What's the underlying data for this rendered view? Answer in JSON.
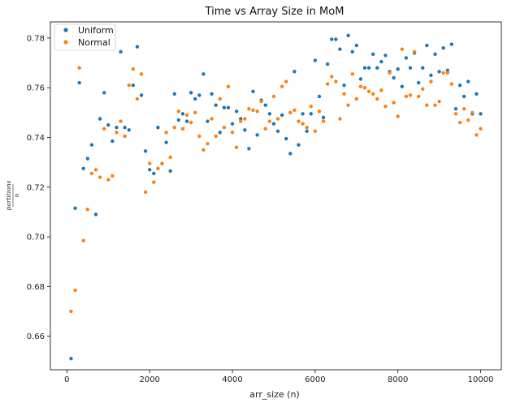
{
  "chart_data": {
    "type": "scatter",
    "title": "Time vs Array Size in MoM",
    "xlabel": "arr_size (n)",
    "ylabel": "partitions / n",
    "ylabel_numerator": "partitions",
    "ylabel_denominator": "n",
    "xlim": [
      -400,
      10500
    ],
    "ylim": [
      0.6465,
      0.7865
    ],
    "xticks": [
      0,
      2000,
      4000,
      6000,
      8000,
      10000
    ],
    "yticks": [
      0.66,
      0.68,
      0.7,
      0.72,
      0.74,
      0.76,
      0.78
    ],
    "xtick_labels": [
      "0",
      "2000",
      "4000",
      "6000",
      "8000",
      "10000"
    ],
    "ytick_labels": [
      "0.66",
      "0.68",
      "0.70",
      "0.72",
      "0.74",
      "0.76",
      "0.78"
    ],
    "legend_position": "upper-left",
    "grid": false,
    "series": [
      {
        "name": "Uniform",
        "color": "#1f77b4",
        "points": [
          [
            100,
            0.651
          ],
          [
            200,
            0.7115
          ],
          [
            300,
            0.762
          ],
          [
            400,
            0.7275
          ],
          [
            500,
            0.7315
          ],
          [
            600,
            0.737
          ],
          [
            700,
            0.709
          ],
          [
            800,
            0.7475
          ],
          [
            900,
            0.758
          ],
          [
            1000,
            0.745
          ],
          [
            1100,
            0.7385
          ],
          [
            1200,
            0.744
          ],
          [
            1300,
            0.7745
          ],
          [
            1400,
            0.744
          ],
          [
            1500,
            0.743
          ],
          [
            1600,
            0.761
          ],
          [
            1700,
            0.7765
          ],
          [
            1800,
            0.757
          ],
          [
            1900,
            0.7345
          ],
          [
            2000,
            0.727
          ],
          [
            2100,
            0.7255
          ],
          [
            2200,
            0.744
          ],
          [
            2300,
            0.7295
          ],
          [
            2400,
            0.738
          ],
          [
            2500,
            0.7265
          ],
          [
            2600,
            0.7575
          ],
          [
            2700,
            0.747
          ],
          [
            2800,
            0.7495
          ],
          [
            2900,
            0.7465
          ],
          [
            3000,
            0.758
          ],
          [
            3100,
            0.7555
          ],
          [
            3200,
            0.757
          ],
          [
            3300,
            0.7655
          ],
          [
            3400,
            0.7465
          ],
          [
            3500,
            0.7575
          ],
          [
            3600,
            0.753
          ],
          [
            3700,
            0.742
          ],
          [
            3800,
            0.752
          ],
          [
            3900,
            0.752
          ],
          [
            4000,
            0.7455
          ],
          [
            4100,
            0.7505
          ],
          [
            4200,
            0.7475
          ],
          [
            4300,
            0.743
          ],
          [
            4400,
            0.7355
          ],
          [
            4500,
            0.7585
          ],
          [
            4600,
            0.741
          ],
          [
            4700,
            0.755
          ],
          [
            4800,
            0.753
          ],
          [
            4900,
            0.7495
          ],
          [
            5000,
            0.7455
          ],
          [
            5100,
            0.7425
          ],
          [
            5200,
            0.749
          ],
          [
            5300,
            0.7395
          ],
          [
            5400,
            0.7335
          ],
          [
            5500,
            0.7665
          ],
          [
            5600,
            0.737
          ],
          [
            5700,
            0.7495
          ],
          [
            5800,
            0.7425
          ],
          [
            5900,
            0.7495
          ],
          [
            6000,
            0.771
          ],
          [
            6100,
            0.7565
          ],
          [
            6200,
            0.748
          ],
          [
            6300,
            0.7695
          ],
          [
            6400,
            0.7795
          ],
          [
            6500,
            0.7795
          ],
          [
            6600,
            0.7755
          ],
          [
            6700,
            0.761
          ],
          [
            6800,
            0.781
          ],
          [
            6900,
            0.7745
          ],
          [
            7000,
            0.777
          ],
          [
            7100,
            0.7635
          ],
          [
            7200,
            0.768
          ],
          [
            7300,
            0.768
          ],
          [
            7400,
            0.7735
          ],
          [
            7500,
            0.768
          ],
          [
            7600,
            0.7705
          ],
          [
            7700,
            0.773
          ],
          [
            7800,
            0.7665
          ],
          [
            7900,
            0.764
          ],
          [
            8000,
            0.7675
          ],
          [
            8100,
            0.7605
          ],
          [
            8200,
            0.772
          ],
          [
            8300,
            0.768
          ],
          [
            8400,
            0.774
          ],
          [
            8500,
            0.762
          ],
          [
            8600,
            0.768
          ],
          [
            8700,
            0.777
          ],
          [
            8800,
            0.765
          ],
          [
            8900,
            0.7735
          ],
          [
            9000,
            0.7665
          ],
          [
            9100,
            0.776
          ],
          [
            9200,
            0.767
          ],
          [
            9300,
            0.7775
          ],
          [
            9400,
            0.7515
          ],
          [
            9500,
            0.761
          ],
          [
            9600,
            0.7565
          ],
          [
            9700,
            0.7625
          ],
          [
            9800,
            0.7495
          ],
          [
            9900,
            0.7575
          ],
          [
            10000,
            0.7495
          ]
        ]
      },
      {
        "name": "Normal",
        "color": "#ff7f0e",
        "points": [
          [
            100,
            0.67
          ],
          [
            200,
            0.6785
          ],
          [
            300,
            0.768
          ],
          [
            400,
            0.6985
          ],
          [
            500,
            0.711
          ],
          [
            600,
            0.7255
          ],
          [
            700,
            0.727
          ],
          [
            800,
            0.724
          ],
          [
            900,
            0.7435
          ],
          [
            1000,
            0.723
          ],
          [
            1100,
            0.7245
          ],
          [
            1200,
            0.742
          ],
          [
            1300,
            0.7465
          ],
          [
            1400,
            0.7405
          ],
          [
            1500,
            0.761
          ],
          [
            1600,
            0.7675
          ],
          [
            1700,
            0.7555
          ],
          [
            1800,
            0.7655
          ],
          [
            1900,
            0.718
          ],
          [
            2000,
            0.7295
          ],
          [
            2100,
            0.722
          ],
          [
            2200,
            0.7275
          ],
          [
            2300,
            0.7295
          ],
          [
            2400,
            0.742
          ],
          [
            2500,
            0.732
          ],
          [
            2600,
            0.744
          ],
          [
            2700,
            0.7505
          ],
          [
            2800,
            0.7435
          ],
          [
            2900,
            0.749
          ],
          [
            3000,
            0.746
          ],
          [
            3100,
            0.75
          ],
          [
            3200,
            0.7405
          ],
          [
            3300,
            0.735
          ],
          [
            3400,
            0.7375
          ],
          [
            3500,
            0.7475
          ],
          [
            3600,
            0.7405
          ],
          [
            3700,
            0.7555
          ],
          [
            3800,
            0.744
          ],
          [
            3900,
            0.7605
          ],
          [
            4000,
            0.742
          ],
          [
            4100,
            0.736
          ],
          [
            4200,
            0.7465
          ],
          [
            4300,
            0.7475
          ],
          [
            4400,
            0.7515
          ],
          [
            4500,
            0.751
          ],
          [
            4600,
            0.7505
          ],
          [
            4700,
            0.7545
          ],
          [
            4800,
            0.7435
          ],
          [
            4900,
            0.7465
          ],
          [
            5000,
            0.7565
          ],
          [
            5100,
            0.7475
          ],
          [
            5200,
            0.7605
          ],
          [
            5300,
            0.7625
          ],
          [
            5400,
            0.75
          ],
          [
            5500,
            0.751
          ],
          [
            5600,
            0.7465
          ],
          [
            5700,
            0.7455
          ],
          [
            5800,
            0.744
          ],
          [
            5900,
            0.7525
          ],
          [
            6000,
            0.7425
          ],
          [
            6100,
            0.7505
          ],
          [
            6200,
            0.7465
          ],
          [
            6300,
            0.7615
          ],
          [
            6400,
            0.7645
          ],
          [
            6500,
            0.7625
          ],
          [
            6600,
            0.7475
          ],
          [
            6700,
            0.7575
          ],
          [
            6800,
            0.753
          ],
          [
            6900,
            0.7655
          ],
          [
            7000,
            0.7555
          ],
          [
            7100,
            0.7605
          ],
          [
            7200,
            0.76
          ],
          [
            7300,
            0.7585
          ],
          [
            7400,
            0.7575
          ],
          [
            7500,
            0.7555
          ],
          [
            7600,
            0.759
          ],
          [
            7700,
            0.7525
          ],
          [
            7800,
            0.766
          ],
          [
            7900,
            0.754
          ],
          [
            8000,
            0.7485
          ],
          [
            8100,
            0.7755
          ],
          [
            8200,
            0.7565
          ],
          [
            8300,
            0.757
          ],
          [
            8400,
            0.7745
          ],
          [
            8500,
            0.7565
          ],
          [
            8600,
            0.7595
          ],
          [
            8700,
            0.753
          ],
          [
            8800,
            0.7625
          ],
          [
            8900,
            0.753
          ],
          [
            9000,
            0.7545
          ],
          [
            9100,
            0.766
          ],
          [
            9200,
            0.766
          ],
          [
            9300,
            0.7615
          ],
          [
            9400,
            0.7495
          ],
          [
            9500,
            0.746
          ],
          [
            9600,
            0.7515
          ],
          [
            9700,
            0.747
          ],
          [
            9800,
            0.75
          ],
          [
            9900,
            0.741
          ],
          [
            10000,
            0.7435
          ]
        ]
      }
    ]
  }
}
